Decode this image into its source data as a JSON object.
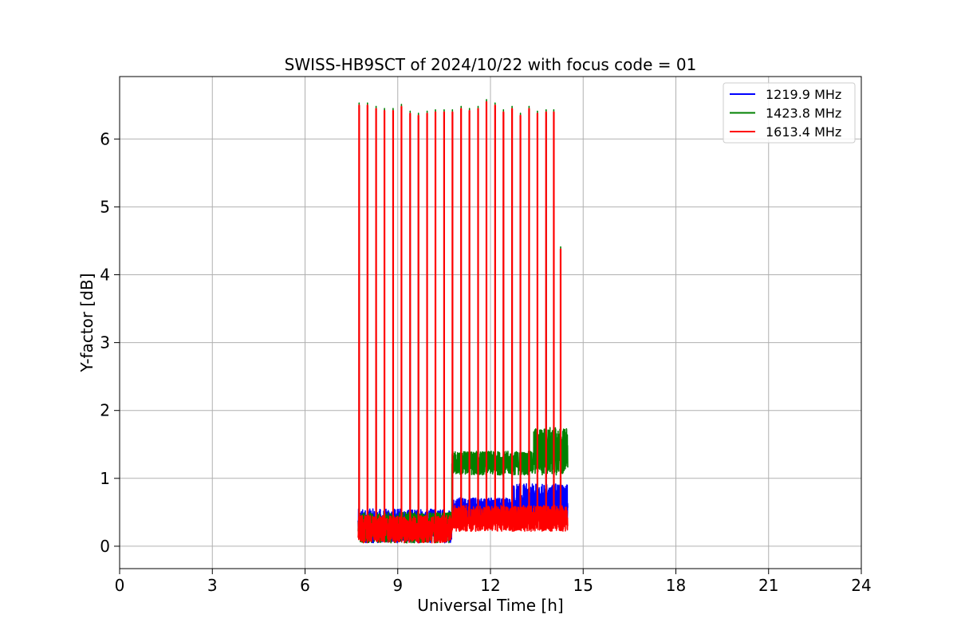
{
  "chart_data": {
    "type": "line",
    "title": "SWISS-HB9SCT of 2024/10/22 with focus code = 01",
    "xlabel": "Universal Time [h]",
    "ylabel": "Y-factor [dB]",
    "xlim": [
      0,
      24
    ],
    "ylim": [
      -0.33,
      6.92
    ],
    "xticks": [
      0,
      3,
      6,
      9,
      12,
      15,
      18,
      21,
      24
    ],
    "yticks": [
      0,
      1,
      2,
      3,
      4,
      5,
      6
    ],
    "grid": true,
    "legend_position": "top-right",
    "data_range_x": [
      7.72,
      14.5
    ],
    "spike_peaks": {
      "x": [
        7.75,
        8.02,
        8.3,
        8.57,
        8.85,
        9.12,
        9.4,
        9.67,
        9.95,
        10.22,
        10.5,
        10.77,
        11.05,
        11.32,
        11.6,
        11.87,
        12.15,
        12.42,
        12.7,
        12.97,
        13.25,
        13.52,
        13.8,
        14.05,
        14.27
      ],
      "y": [
        6.5,
        6.5,
        6.45,
        6.42,
        6.42,
        6.48,
        6.38,
        6.35,
        6.38,
        6.4,
        6.4,
        6.4,
        6.45,
        6.42,
        6.45,
        6.55,
        6.5,
        6.4,
        6.45,
        6.35,
        6.45,
        6.38,
        6.4,
        6.4,
        4.38
      ]
    },
    "series": [
      {
        "name": "1219.9 MHz",
        "color": "#0000ff",
        "baseline": [
          {
            "x_start": 7.72,
            "x_end": 10.75,
            "low": 0.05,
            "high": 0.55
          },
          {
            "x_start": 10.75,
            "x_end": 12.7,
            "low": 0.35,
            "high": 0.72
          },
          {
            "x_start": 12.7,
            "x_end": 14.5,
            "low": 0.35,
            "high": 0.92
          }
        ]
      },
      {
        "name": "1423.8 MHz",
        "color": "#008000",
        "baseline": [
          {
            "x_start": 7.72,
            "x_end": 10.75,
            "low": 0.05,
            "high": 0.5
          },
          {
            "x_start": 10.75,
            "x_end": 13.4,
            "low": 1.05,
            "high": 1.4
          },
          {
            "x_start": 13.4,
            "x_end": 14.5,
            "low": 1.05,
            "high": 1.75
          }
        ]
      },
      {
        "name": "1613.4 MHz",
        "color": "#ff0000",
        "baseline": [
          {
            "x_start": 7.72,
            "x_end": 10.75,
            "low": 0.05,
            "high": 0.45
          },
          {
            "x_start": 10.75,
            "x_end": 14.5,
            "low": 0.22,
            "high": 0.6
          }
        ]
      }
    ]
  }
}
